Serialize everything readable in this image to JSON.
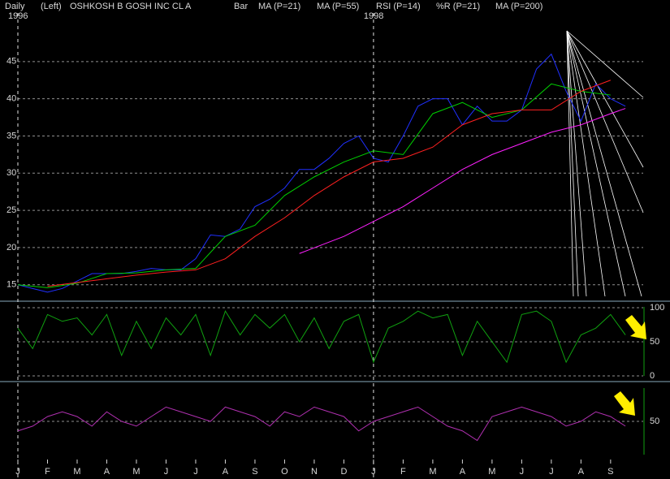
{
  "chart_data": [
    {
      "type": "line",
      "period": "Daily",
      "scale": "(Left)",
      "title": "OSHKOSH B GOSH INC CL A",
      "xlim": [
        0,
        21.1
      ],
      "ylim": [
        12.9,
        50
      ],
      "yticks": [
        15,
        20,
        25,
        30,
        35,
        40,
        45
      ],
      "grid": true,
      "xticks": [
        {
          "value": 0,
          "label": "J"
        },
        {
          "value": 1,
          "label": "F"
        },
        {
          "value": 2,
          "label": "M"
        },
        {
          "value": 3,
          "label": "A"
        },
        {
          "value": 4,
          "label": "M"
        },
        {
          "value": 5,
          "label": "J"
        },
        {
          "value": 6,
          "label": "J"
        },
        {
          "value": 7,
          "label": "A"
        },
        {
          "value": 8,
          "label": "S"
        },
        {
          "value": 9,
          "label": "O"
        },
        {
          "value": 10,
          "label": "N"
        },
        {
          "value": 11,
          "label": "D"
        },
        {
          "value": 12,
          "label": "J"
        },
        {
          "value": 13,
          "label": "F"
        },
        {
          "value": 14,
          "label": "M"
        },
        {
          "value": 15,
          "label": "A"
        },
        {
          "value": 16,
          "label": "M"
        },
        {
          "value": 17,
          "label": "J"
        },
        {
          "value": 18,
          "label": "J"
        },
        {
          "value": 19,
          "label": "A"
        },
        {
          "value": 20,
          "label": "S"
        }
      ],
      "year_markers": [
        {
          "x": 0,
          "label": "1996"
        },
        {
          "x": 12,
          "label": "1998"
        }
      ],
      "series": [
        {
          "name": "Bar",
          "color": "#2030ff",
          "x": [
            0,
            0.5,
            1,
            1.5,
            2,
            2.5,
            3,
            3.5,
            4,
            4.5,
            5,
            5.5,
            6,
            6.5,
            7,
            7.5,
            8,
            8.5,
            9,
            9.5,
            10,
            10.5,
            11,
            11.5,
            12,
            12.5,
            13,
            13.5,
            14,
            14.5,
            15,
            15.5,
            16,
            16.5,
            17,
            17.5,
            18,
            18.5,
            19,
            19.5,
            20,
            20.5
          ],
          "values": [
            15,
            14.5,
            14,
            14.5,
            15.5,
            16.5,
            16.5,
            16.5,
            16.8,
            17.2,
            17,
            17,
            18.5,
            21.7,
            21.5,
            22.5,
            25.5,
            26.5,
            28,
            30.5,
            30.5,
            32,
            34,
            35,
            32,
            31.5,
            35,
            39,
            40,
            40,
            36.5,
            39,
            37,
            37,
            38.5,
            44,
            46,
            41,
            37,
            42,
            40,
            39
          ]
        },
        {
          "name": "MA (P=21)",
          "color": "#00d000",
          "x": [
            0,
            1,
            2,
            3,
            4,
            5,
            6,
            7,
            8,
            9,
            10,
            11,
            12,
            13,
            14,
            15,
            16,
            17,
            18,
            19,
            20
          ],
          "values": [
            15,
            14.6,
            15.2,
            16.5,
            16.6,
            17,
            17.2,
            21.5,
            23,
            27,
            29.5,
            31.5,
            33,
            32.5,
            38,
            39.5,
            37.5,
            38.5,
            42,
            41,
            40.5
          ]
        },
        {
          "name": "MA (P=55)",
          "color": "#ff2020",
          "x": [
            1,
            2,
            3,
            4,
            5,
            6,
            7,
            8,
            9,
            10,
            11,
            12,
            13,
            14,
            15,
            16,
            17,
            18,
            19,
            20
          ],
          "values": [
            14.8,
            15.3,
            15.8,
            16.3,
            16.7,
            17,
            18.5,
            21.5,
            24,
            27,
            29.5,
            31.5,
            32,
            33.5,
            36.5,
            38,
            38.5,
            38.5,
            41,
            42.5
          ]
        },
        {
          "name": "MA (P=200)",
          "color": "#ff20ff",
          "x": [
            9.5,
            11,
            12,
            13,
            14,
            15,
            16,
            17,
            18,
            19,
            20,
            20.5
          ],
          "values": [
            19.2,
            21.5,
            23.5,
            25.5,
            28,
            30.5,
            32.5,
            34,
            35.5,
            36.5,
            38,
            38.7
          ]
        }
      ]
    },
    {
      "type": "line",
      "xlim": [
        0,
        21.1
      ],
      "ylim": [
        -6,
        108.3
      ],
      "yticks": [
        0,
        50,
        100
      ],
      "grid": true,
      "series": [
        {
          "name": "%R (P=21)",
          "color": "#10a010",
          "x": [
            0,
            0.5,
            1,
            1.5,
            2,
            2.5,
            3,
            3.5,
            4,
            4.5,
            5,
            5.5,
            6,
            6.5,
            7,
            7.5,
            8,
            8.5,
            9,
            9.5,
            10,
            10.5,
            11,
            11.5,
            12,
            12.5,
            13,
            13.5,
            14,
            14.5,
            15,
            15.5,
            16,
            16.5,
            17,
            17.5,
            18,
            18.5,
            19,
            19.5,
            20,
            20.5
          ],
          "values": [
            70,
            40,
            90,
            80,
            85,
            60,
            90,
            30,
            80,
            40,
            85,
            60,
            90,
            30,
            95,
            60,
            90,
            70,
            90,
            50,
            85,
            40,
            80,
            90,
            20,
            70,
            80,
            95,
            85,
            90,
            30,
            80,
            50,
            20,
            90,
            95,
            80,
            20,
            60,
            70,
            90,
            60
          ]
        }
      ]
    },
    {
      "type": "line",
      "xlim": [
        0,
        21.1
      ],
      "ylim": [
        10,
        90
      ],
      "yticks": [
        50
      ],
      "grid": true,
      "series": [
        {
          "name": "RSI (P=14)",
          "color": "#b030b0",
          "x": [
            0,
            0.5,
            1,
            1.5,
            2,
            2.5,
            3,
            3.5,
            4,
            4.5,
            5,
            5.5,
            6,
            6.5,
            7,
            7.5,
            8,
            8.5,
            9,
            9.5,
            10,
            10.5,
            11,
            11.5,
            12,
            12.5,
            13,
            13.5,
            14,
            14.5,
            15,
            15.5,
            16,
            16.5,
            17,
            17.5,
            18,
            18.5,
            19,
            19.5,
            20,
            20.5
          ],
          "values": [
            40,
            45,
            55,
            60,
            55,
            45,
            60,
            50,
            45,
            55,
            65,
            60,
            55,
            50,
            65,
            60,
            55,
            45,
            60,
            55,
            65,
            60,
            55,
            40,
            50,
            55,
            60,
            65,
            55,
            45,
            40,
            30,
            55,
            60,
            65,
            60,
            55,
            45,
            50,
            60,
            55,
            45
          ]
        }
      ]
    }
  ]
}
